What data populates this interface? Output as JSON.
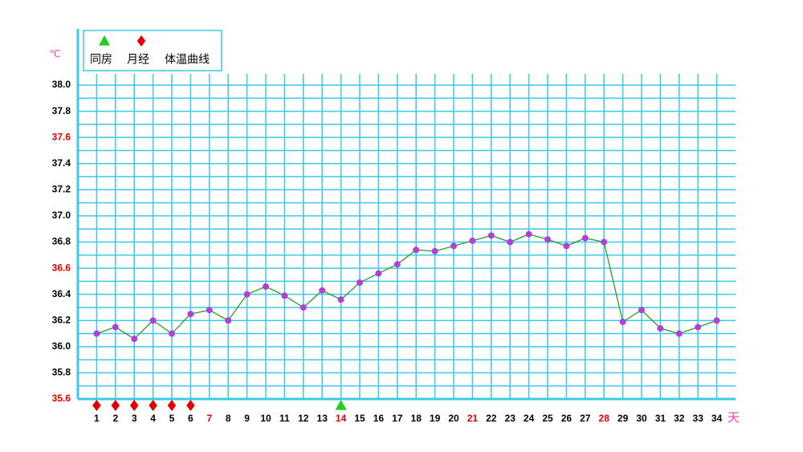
{
  "chart_data": {
    "type": "line",
    "y_unit": "℃",
    "x_unit": "天",
    "unit_color": "#ee44aa",
    "x": [
      1,
      2,
      3,
      4,
      5,
      6,
      7,
      8,
      9,
      10,
      11,
      12,
      13,
      14,
      15,
      16,
      17,
      18,
      19,
      20,
      21,
      22,
      23,
      24,
      25,
      26,
      27,
      28,
      29,
      30,
      31,
      32,
      33,
      34
    ],
    "x_label_colors": [
      "#000",
      "#000",
      "#000",
      "#000",
      "#000",
      "#000",
      "#e00000",
      "#000",
      "#000",
      "#000",
      "#000",
      "#000",
      "#000",
      "#e00000",
      "#000",
      "#000",
      "#000",
      "#000",
      "#000",
      "#000",
      "#e00000",
      "#000",
      "#000",
      "#000",
      "#000",
      "#000",
      "#000",
      "#e00000",
      "#000",
      "#000",
      "#000",
      "#000",
      "#000",
      "#000"
    ],
    "xlim": [
      0,
      35
    ],
    "ylim": [
      35.6,
      38.0
    ],
    "yticks": [
      {
        "value": 35.6,
        "label": "35.6"
      },
      35.8,
      {
        "value": 36.0,
        "label": "36.0"
      },
      36.2,
      36.4,
      36.6,
      36.8,
      {
        "value": 37.0,
        "label": "37.0"
      },
      37.2,
      37.4,
      37.6,
      37.8,
      {
        "value": 38.0,
        "label": "38.0"
      }
    ],
    "ytick_colors": [
      "#e00000",
      "#000",
      "#000",
      "#000",
      "#000",
      "#e00000",
      "#000",
      "#000",
      "#000",
      "#000",
      "#e00000",
      "#000",
      "#000"
    ],
    "minor_yticks": [
      35.7,
      35.9,
      36.1,
      36.3,
      36.5,
      36.7,
      36.9,
      37.1,
      37.3,
      37.5,
      37.7,
      37.9
    ],
    "grid_color": "#3cc8e8",
    "markers": [
      {
        "name": "同房",
        "shape": "triangle",
        "color": "#22cc22",
        "x": [
          14
        ]
      },
      {
        "name": "月经",
        "shape": "diamond",
        "color": "#e00000",
        "x": [
          1,
          2,
          3,
          4,
          5,
          6
        ]
      }
    ],
    "series": [
      {
        "name": "体温曲线",
        "color": "#2e9a2e",
        "point_color": "#b040d8",
        "values": [
          36.1,
          36.15,
          36.06,
          36.2,
          36.1,
          36.25,
          36.28,
          36.2,
          36.4,
          36.46,
          36.39,
          36.3,
          36.43,
          36.36,
          36.49,
          36.56,
          36.63,
          36.74,
          36.73,
          36.77,
          36.81,
          36.85,
          36.8,
          36.86,
          36.82,
          36.77,
          36.83,
          36.8,
          36.19,
          36.28,
          36.14,
          36.1,
          36.15,
          36.2
        ]
      }
    ]
  }
}
